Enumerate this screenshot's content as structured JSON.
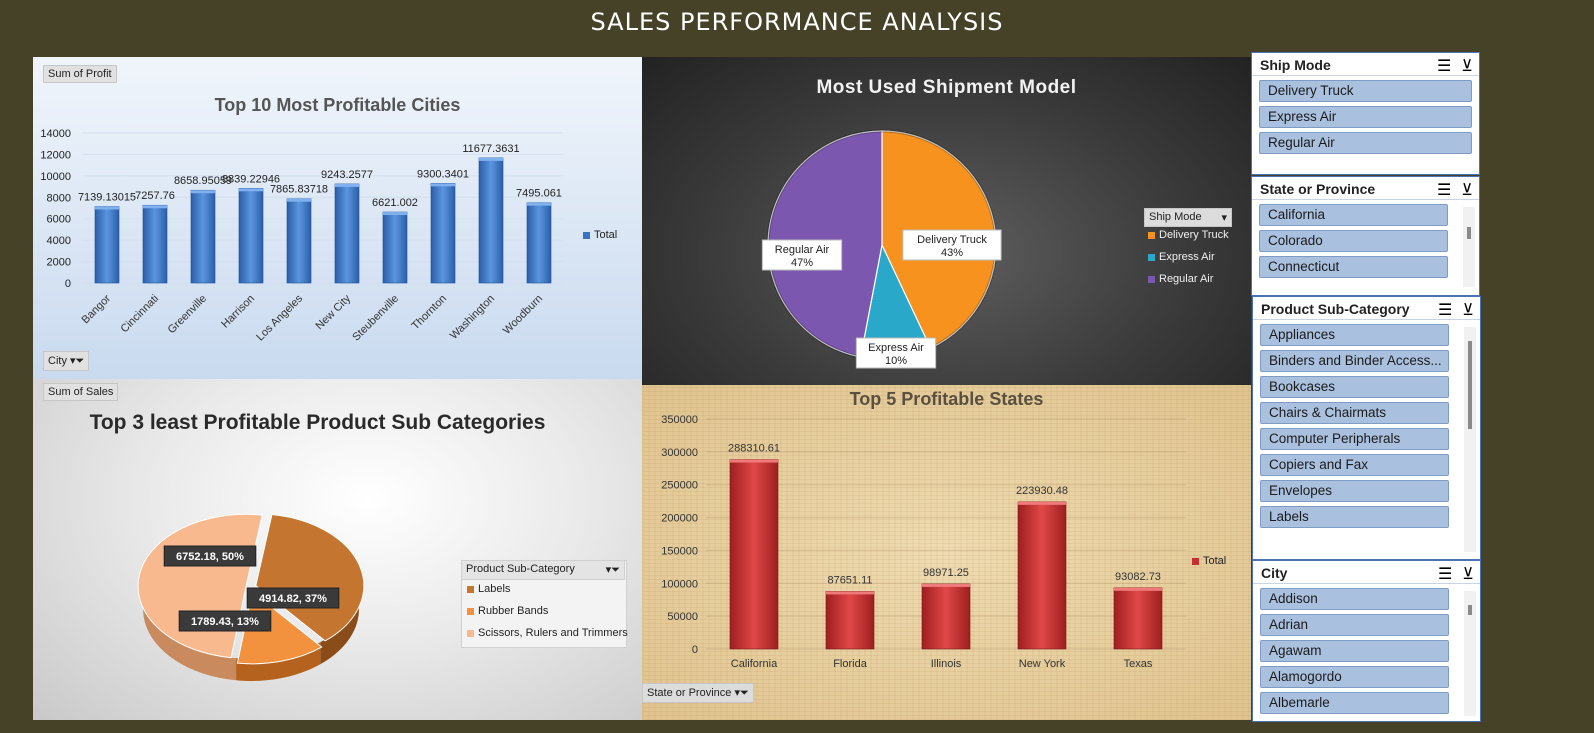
{
  "dashboard_title": "SALES PERFORMANCE ANALYSIS",
  "colors": {
    "background": "#454227",
    "bar_blue": "#3a72c4",
    "bar_red": "#c92f2f",
    "pie_orange": "#f7921e",
    "pie_cyan": "#2aa8c9",
    "pie_purple": "#7c57b0",
    "pie_peach": "#f9b98f",
    "pie_brown": "#c4752f",
    "pie_lightorange": "#f2913e",
    "slicer_item": "#a9c0de"
  },
  "profit_cities": {
    "value_field": "Sum of Profit",
    "axis_field": "City",
    "legend": "Total",
    "chart_data": {
      "type": "bar",
      "title": "Top 10 Most Profitable Cities",
      "categories": [
        "Bangor",
        "Cincinnati",
        "Greenville",
        "Harrison",
        "Los Angeles",
        "New City",
        "Steubenville",
        "Thornton",
        "Washington",
        "Woodburn"
      ],
      "values": [
        7139.13015,
        7257.76,
        8658.95059,
        8839.22946,
        7865.83718,
        9243.2577,
        6621.002,
        9300.3401,
        11677.3631,
        7495.061
      ],
      "labels": [
        "7139.13015",
        "7257.76",
        "8658.95059",
        "8839.22946",
        "7865.83718",
        "9243.2577",
        "6621.002",
        "9300.3401",
        "11677.3631",
        "7495.061"
      ],
      "yticks": [
        "0",
        "2000",
        "4000",
        "6000",
        "8000",
        "10000",
        "12000",
        "14000"
      ],
      "ylim": [
        0,
        14000
      ],
      "series_name": "Total"
    }
  },
  "shipment": {
    "legend_title": "Ship Mode",
    "chart_data": {
      "type": "pie",
      "title": "Most Used Shipment Model",
      "labels": [
        "Delivery Truck",
        "Express Air",
        "Regular Air"
      ],
      "values": [
        43,
        10,
        47
      ],
      "data_labels": [
        {
          "name": "Delivery Truck",
          "pct": "43%"
        },
        {
          "name": "Express Air",
          "pct": "10%"
        },
        {
          "name": "Regular Air",
          "pct": "47%"
        }
      ]
    }
  },
  "least_profitable": {
    "value_field": "Sum of Sales",
    "legend_title": "Product Sub-Category",
    "chart_data": {
      "type": "pie",
      "title": "Top 3 least Profitable Product Sub Categories",
      "labels": [
        "Labels",
        "Rubber Bands",
        "Scissors, Rulers and Trimmers"
      ],
      "values": [
        4914.82,
        1789.43,
        6752.18
      ],
      "data_labels": [
        "4914.82, 37%",
        "1789.43, 13%",
        "6752.18, 50%"
      ]
    }
  },
  "profitable_states": {
    "axis_field": "State or Province",
    "legend": "Total",
    "chart_data": {
      "type": "bar",
      "title": "Top 5 Profitable States",
      "categories": [
        "California",
        "Florida",
        "Illinois",
        "New York",
        "Texas"
      ],
      "values": [
        288310.61,
        87651.11,
        98971.25,
        223930.48,
        93082.73
      ],
      "labels": [
        "288310.61",
        "87651.11",
        "98971.25",
        "223930.48",
        "93082.73"
      ],
      "yticks": [
        "0",
        "50000",
        "100000",
        "150000",
        "200000",
        "250000",
        "300000",
        "350000"
      ],
      "ylim": [
        0,
        350000
      ],
      "series_name": "Total"
    }
  },
  "slicers": {
    "ship_mode": {
      "title": "Ship Mode",
      "items": [
        "Delivery Truck",
        "Express Air",
        "Regular Air"
      ]
    },
    "state": {
      "title": "State or Province",
      "items": [
        "California",
        "Colorado",
        "Connecticut"
      ]
    },
    "subcat": {
      "title": "Product Sub-Category",
      "items": [
        "Appliances",
        "Binders and Binder Access...",
        "Bookcases",
        "Chairs & Chairmats",
        "Computer Peripherals",
        "Copiers and Fax",
        "Envelopes",
        "Labels"
      ]
    },
    "city": {
      "title": "City",
      "items": [
        "Addison",
        "Adrian",
        "Agawam",
        "Alamogordo",
        "Albemarle"
      ]
    }
  }
}
